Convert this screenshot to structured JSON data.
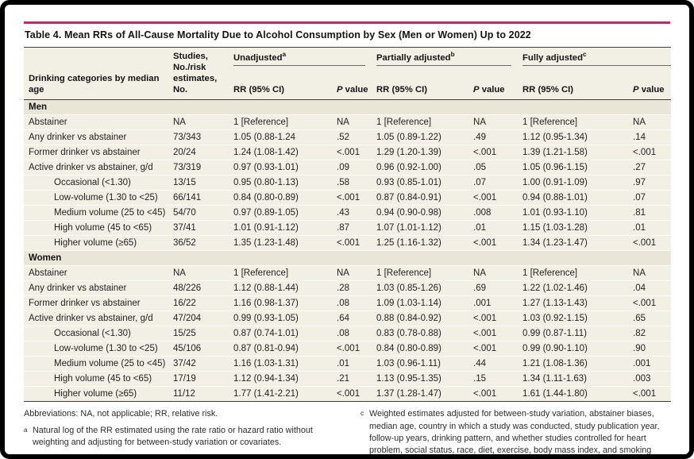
{
  "title": "Table 4. Mean RRs of All-Cause Mortality Due to Alcohol Consumption by Sex (Men or Women) Up to 2022",
  "accent_color": "#e5127d",
  "table": {
    "col_category": "Drinking categories by median age",
    "col_studies": "Studies,\nNo./risk\nestimates, No.",
    "groups": [
      {
        "label": "Unadjusted",
        "sup": "a"
      },
      {
        "label": "Partially adjusted",
        "sup": "b"
      },
      {
        "label": "Fully adjusted",
        "sup": "c"
      }
    ],
    "sub_rr": "RR (95% CI)",
    "sub_p_italic": "P",
    "sub_p_rest": " value",
    "sections": [
      {
        "label": "Men",
        "rows": [
          {
            "category": "Abstainer",
            "indent": false,
            "values": [
              "NA",
              "1 [Reference]",
              "NA",
              "1 [Reference]",
              "NA",
              "1 [Reference]",
              "NA"
            ]
          },
          {
            "category": "Any drinker vs abstainer",
            "indent": false,
            "values": [
              "73/343",
              "1.05 (0.88-1.24",
              ".52",
              "1.05 (0.89-1.22)",
              ".49",
              "1.12 (0.95-1.34)",
              ".14"
            ]
          },
          {
            "category": "Former drinker vs abstainer",
            "indent": false,
            "values": [
              "20/24",
              "1.24 (1.08-1.42)",
              "<.001",
              "1.29 (1.20-1.39)",
              "<.001",
              "1.39 (1.21-1.58)",
              "<.001"
            ]
          },
          {
            "category": "Active drinker vs abstainer, g/d",
            "indent": false,
            "values": [
              "73/319",
              "0.97 (0.93-1.01)",
              ".09",
              "0.96 (0.92-1.00)",
              ".05",
              "1.05 (0.96-1.15)",
              ".27"
            ]
          },
          {
            "category": "Occasional (<1.30)",
            "indent": true,
            "values": [
              "13/15",
              "0.95 (0.80-1.13)",
              ".58",
              "0.93 (0.85-1.01)",
              ".07",
              "1.00 (0.91-1.09)",
              ".97"
            ]
          },
          {
            "category": "Low-volume (1.30 to <25)",
            "indent": true,
            "values": [
              "66/141",
              "0.84 (0.80-0.89)",
              "<.001",
              "0.87 (0.84-0.91)",
              "<.001",
              "0.94 (0.88-1.01)",
              ".07"
            ]
          },
          {
            "category": "Medium volume (25 to <45)",
            "indent": true,
            "values": [
              "54/70",
              "0.97 (0.89-1.05)",
              ".43",
              "0.94 (0.90-0.98)",
              ".008",
              "1.01 (0.93-1.10)",
              ".81"
            ]
          },
          {
            "category": "High volume (45 to <65)",
            "indent": true,
            "values": [
              "37/41",
              "1.01 (0.91-1.12)",
              ".87",
              "1.07 (1.01-1.12)",
              ".01",
              "1.15 (1.03-1.28)",
              ".01"
            ]
          },
          {
            "category": "Higher volume (≥65)",
            "indent": true,
            "values": [
              "36/52",
              "1.35 (1.23-1.48)",
              "<.001",
              "1.25 (1.16-1.32)",
              "<.001",
              "1.34 (1.23-1.47)",
              "<.001"
            ]
          }
        ]
      },
      {
        "label": "Women",
        "rows": [
          {
            "category": "Abstainer",
            "indent": false,
            "values": [
              "NA",
              "1 [Reference]",
              "NA",
              "1 [Reference]",
              "NA",
              "1 [Reference]",
              "NA"
            ]
          },
          {
            "category": "Any drinker vs abstainer",
            "indent": false,
            "values": [
              "48/226",
              "1.12 (0.88-1.44)",
              ".28",
              "1.03 (0.85-1.26)",
              ".69",
              "1.22 (1.02-1.46)",
              ".04"
            ]
          },
          {
            "category": "Former drinker vs abstainer",
            "indent": false,
            "values": [
              "16/22",
              "1.16 (0.98-1.37)",
              ".08",
              "1.09 (1.03-1.14)",
              ".001",
              "1.27 (1.13-1.43)",
              "<.001"
            ]
          },
          {
            "category": "Active drinker vs abstainer, g/d",
            "indent": false,
            "values": [
              "47/204",
              "0.99 (0.93-1.05)",
              ".64",
              "0.88 (0.84-0.92)",
              "<.001",
              "1.03 (0.92-1.15)",
              ".65"
            ]
          },
          {
            "category": "Occasional (<1.30)",
            "indent": true,
            "values": [
              "15/25",
              "0.87 (0.74-1.01)",
              ".08",
              "0.83 (0.78-0.88)",
              "<.001",
              "0.99 (0.87-1.11)",
              ".82"
            ]
          },
          {
            "category": "Low-volume (1.30 to <25)",
            "indent": true,
            "values": [
              "45/106",
              "0.87 (0.81-0.94)",
              "<.001",
              "0.84 (0.80-0.89)",
              "<.001",
              "0.99 (0.90-1.10)",
              ".90"
            ]
          },
          {
            "category": "Medium volume (25 to <45)",
            "indent": true,
            "values": [
              "37/42",
              "1.16 (1.03-1.31)",
              ".01",
              "1.03 (0.96-1.11)",
              ".44",
              "1.21 (1.08-1.36)",
              ".001"
            ]
          },
          {
            "category": "High volume (45 to <65)",
            "indent": true,
            "values": [
              "17/19",
              "1.12 (0.94-1.34)",
              ".21",
              "1.13 (0.95-1.35)",
              ".15",
              "1.34 (1.11-1.63)",
              ".003"
            ]
          },
          {
            "category": "Higher volume (≥65)",
            "indent": true,
            "values": [
              "11/12",
              "1.77 (1.41-2.21)",
              "<.001",
              "1.37 (1.28-1.47)",
              "<.001",
              "1.61 (1.44-1.80)",
              "<.001"
            ]
          }
        ]
      }
    ]
  },
  "footnotes": {
    "abbreviations": "Abbreviations: NA, not applicable; RR, relative risk.",
    "a_sup": "a",
    "a_text": "Natural log of the RR estimated using the rate ratio or hazard ratio without weighting and adjusting for between-study variation or covariates.",
    "b_sup": "b",
    "b_text": "Weighted estimates adjusted for between-study variation.",
    "c_sup": "c",
    "c_text": "Weighted estimates adjusted for between-study variation, abstainer biases, median age, country in which a study was conducted, study publication year, follow-up years, drinking pattern, and whether studies controlled for heart problem, social status, race, diet, exercise, body mass index, and smoking status."
  }
}
